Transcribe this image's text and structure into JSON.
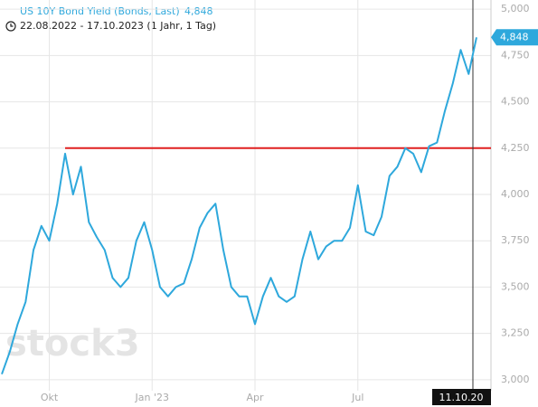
{
  "chart_data": {
    "type": "line",
    "title": "US 10Y Bond Yield (Bonds, Last)",
    "last_value_label": "4,848",
    "subtitle": "22.08.2022 - 17.10.2023  (1 Jahr, 1 Tag)",
    "watermark": "stock3",
    "crosshair_label": "11.10.20",
    "categories": [
      null,
      null,
      null,
      null,
      null,
      null,
      "Okt",
      null,
      null,
      null,
      null,
      null,
      null,
      null,
      null,
      null,
      null,
      null,
      null,
      "Jan '23",
      null,
      null,
      null,
      null,
      null,
      null,
      null,
      null,
      null,
      null,
      null,
      null,
      "Apr",
      null,
      null,
      null,
      null,
      null,
      null,
      null,
      null,
      null,
      null,
      null,
      null,
      "Jul",
      null,
      null,
      null,
      null,
      null,
      null,
      null,
      null,
      null,
      null,
      null,
      null,
      null,
      null,
      null
    ],
    "series": [
      {
        "name": "US 10Y Bond Yield (Bonds, Last)",
        "color": "#2ea8dc",
        "values": [
          3.03,
          3.15,
          3.3,
          3.42,
          3.7,
          3.83,
          3.75,
          3.95,
          4.22,
          4.0,
          4.15,
          3.85,
          3.77,
          3.7,
          3.55,
          3.5,
          3.55,
          3.75,
          3.85,
          3.7,
          3.5,
          3.45,
          3.5,
          3.52,
          3.65,
          3.82,
          3.9,
          3.95,
          3.7,
          3.5,
          3.45,
          3.45,
          3.3,
          3.45,
          3.55,
          3.45,
          3.42,
          3.45,
          3.65,
          3.8,
          3.65,
          3.72,
          3.75,
          3.75,
          3.82,
          4.05,
          3.8,
          3.78,
          3.88,
          4.1,
          4.15,
          4.25,
          4.22,
          4.12,
          4.26,
          4.28,
          4.45,
          4.6,
          4.78,
          4.65,
          4.848
        ]
      }
    ],
    "reference_line": {
      "value": 4.25,
      "color": "#e02020"
    },
    "ylim": [
      2.97,
      5.03
    ],
    "yticks": [
      {
        "value": 3,
        "label": "3,000"
      },
      {
        "value": 3.25,
        "label": "3,250"
      },
      {
        "value": 3.5,
        "label": "3,500"
      },
      {
        "value": 3.75,
        "label": "3,750"
      },
      {
        "value": 4,
        "label": "4,000"
      },
      {
        "value": 4.25,
        "label": "4,250"
      },
      {
        "value": 4.5,
        "label": "4,500"
      },
      {
        "value": 4.75,
        "label": "4,750"
      },
      {
        "value": 5,
        "label": "5,000"
      }
    ],
    "grid": true
  }
}
